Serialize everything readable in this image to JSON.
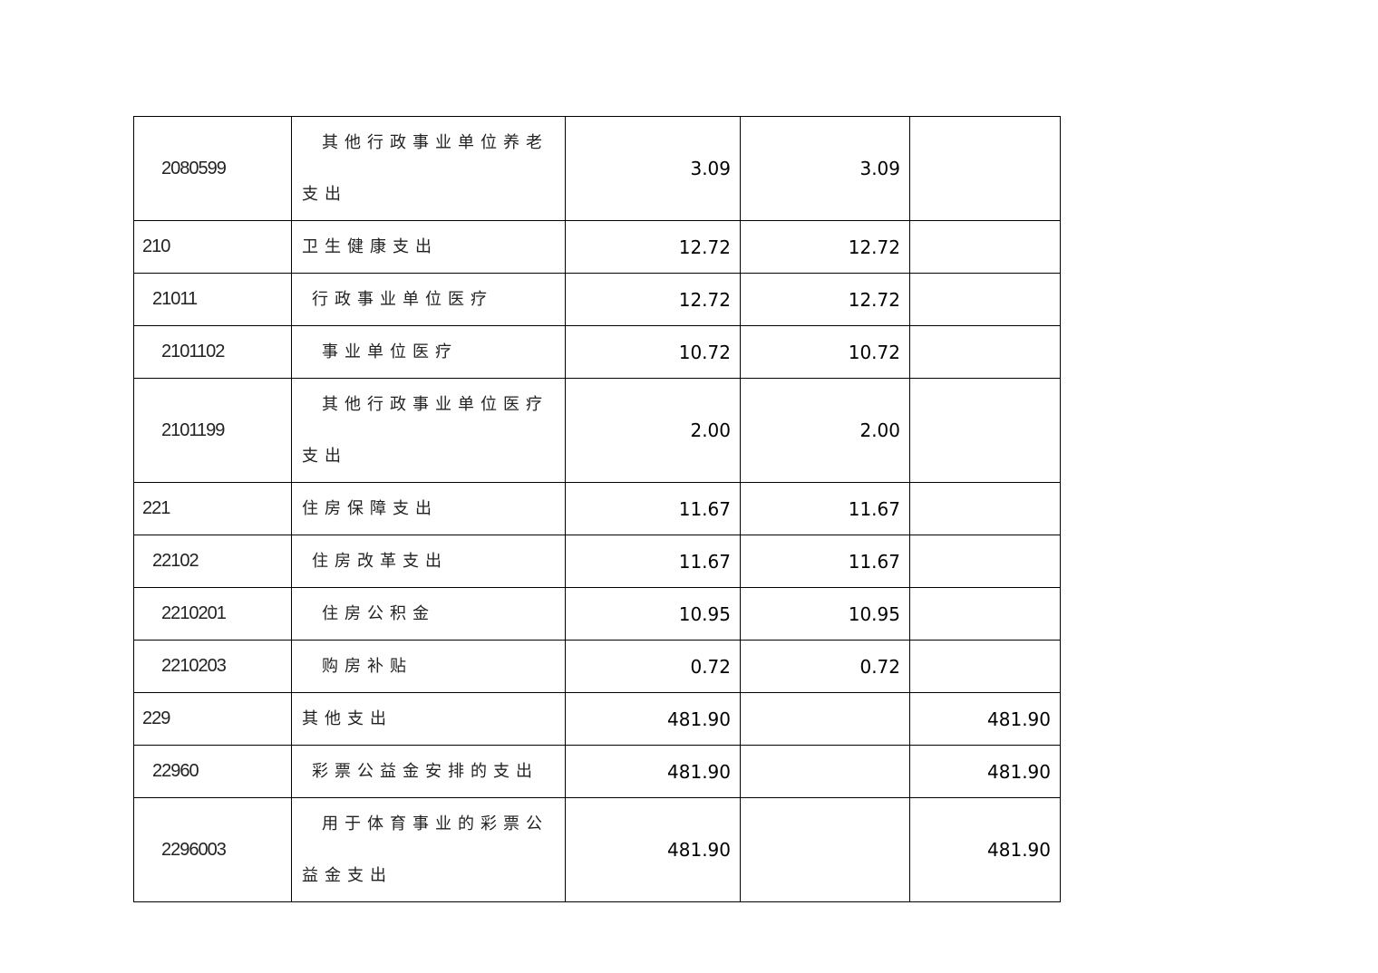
{
  "rows": [
    {
      "code": "2080599",
      "name": "其他行政事业单位养老支出",
      "total": "3.09",
      "basic": "3.09",
      "project": "",
      "level": 2
    },
    {
      "code": "210",
      "name": "卫生健康支出",
      "total": "12.72",
      "basic": "12.72",
      "project": "",
      "level": 0
    },
    {
      "code": "21011",
      "name": "行政事业单位医疗",
      "total": "12.72",
      "basic": "12.72",
      "project": "",
      "level": 1
    },
    {
      "code": "2101102",
      "name": "事业单位医疗",
      "total": "10.72",
      "basic": "10.72",
      "project": "",
      "level": 2
    },
    {
      "code": "2101199",
      "name": "其他行政事业单位医疗支出",
      "total": "2.00",
      "basic": "2.00",
      "project": "",
      "level": 2
    },
    {
      "code": "221",
      "name": "住房保障支出",
      "total": "11.67",
      "basic": "11.67",
      "project": "",
      "level": 0
    },
    {
      "code": "22102",
      "name": "住房改革支出",
      "total": "11.67",
      "basic": "11.67",
      "project": "",
      "level": 1
    },
    {
      "code": "2210201",
      "name": "住房公积金",
      "total": "10.95",
      "basic": "10.95",
      "project": "",
      "level": 2
    },
    {
      "code": "2210203",
      "name": "购房补贴",
      "total": "0.72",
      "basic": "0.72",
      "project": "",
      "level": 2
    },
    {
      "code": "229",
      "name": "其他支出",
      "total": "481.90",
      "basic": "",
      "project": "481.90",
      "level": 0
    },
    {
      "code": "22960",
      "name": "彩票公益金安排的支出",
      "total": "481.90",
      "basic": "",
      "project": "481.90",
      "level": 1
    },
    {
      "code": "2296003",
      "name": "用于体育事业的彩票公益金支出",
      "total": "481.90",
      "basic": "",
      "project": "481.90",
      "level": 2
    }
  ]
}
